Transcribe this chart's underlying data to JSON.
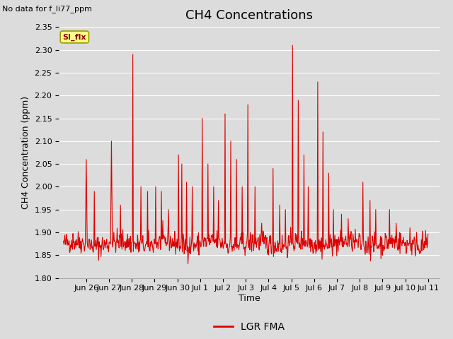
{
  "title": "CH4 Concentrations",
  "xlabel": "Time",
  "ylabel": "CH4 Concentration (ppm)",
  "ylim": [
    1.8,
    2.35
  ],
  "yticks": [
    1.8,
    1.85,
    1.9,
    1.95,
    2.0,
    2.05,
    2.1,
    2.15,
    2.2,
    2.25,
    2.3,
    2.35
  ],
  "line_color": "#dd0000",
  "line_width": 0.8,
  "background_color": "#dcdcdc",
  "plot_bg_color": "#dcdcdc",
  "grid_color": "#ffffff",
  "title_fontsize": 13,
  "axis_label_fontsize": 9,
  "tick_fontsize": 8,
  "no_data_text": "No data for f_li77_ppm",
  "legend_label": "LGR FMA",
  "si_flx_label": "SI_flx",
  "x_tick_labels": [
    "Jun 26",
    "Jun 27",
    "Jun 28",
    "Jun 29",
    "Jun 30",
    "Jul 1",
    "Jul 2",
    "Jul 3",
    "Jul 4",
    "Jul 5",
    "Jul 6",
    "Jul 7",
    "Jul 8",
    "Jul 9",
    "Jul 10",
    "Jul 11"
  ],
  "x_tick_positions": [
    1,
    2,
    3,
    4,
    5,
    6,
    7,
    8,
    9,
    10,
    11,
    12,
    13,
    14,
    15,
    16
  ]
}
